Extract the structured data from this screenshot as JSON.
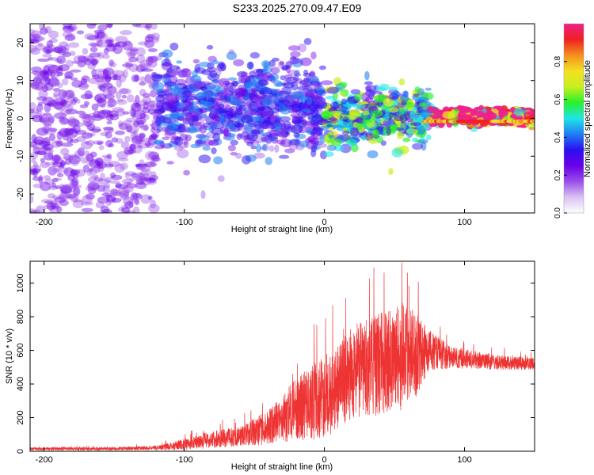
{
  "page_title": "S233.2025.270.09.47.E09",
  "colors": {
    "background": "#ffffff",
    "snr_line": "#ee3333",
    "axis": "#000000",
    "colormap": [
      "#ffffff",
      "#d9c2f2",
      "#9a4dea",
      "#6a00ea",
      "#2a10f0",
      "#1f7ef4",
      "#1fe6e8",
      "#28f028",
      "#c8f020",
      "#f4e020",
      "#f49020",
      "#f02020",
      "#f0208a"
    ]
  },
  "chart_data": [
    {
      "type": "heatmap",
      "title": "",
      "xlabel": "Height of straight line (km)",
      "ylabel": "Frequency (Hz)",
      "xlim": [
        -210,
        150
      ],
      "ylim": [
        -25,
        25
      ],
      "xticks": [
        -200,
        -100,
        0,
        100
      ],
      "yticks": [
        -20,
        -10,
        0,
        10,
        20
      ],
      "colorbar": {
        "label": "Normalized spectral amplitude",
        "range": [
          0.0,
          1.0
        ],
        "ticks": [
          "0.0",
          "0.2",
          "0.4",
          "0.6",
          "0.8"
        ],
        "tick_values": [
          0.0,
          0.2,
          0.4,
          0.6,
          0.8
        ]
      },
      "description_regions": [
        {
          "x_range": [
            -210,
            -120
          ],
          "freq_spread_hz": 25,
          "amplitude": 0.12
        },
        {
          "x_range": [
            -120,
            0
          ],
          "freq_spread_hz": 10,
          "amplitude": 0.22
        },
        {
          "x_range": [
            0,
            75
          ],
          "freq_spread_hz": 6,
          "amplitude": 0.4
        },
        {
          "x_range": [
            75,
            150
          ],
          "freq_spread_hz": 1.5,
          "amplitude": 0.85
        }
      ]
    },
    {
      "type": "line",
      "title": "",
      "xlabel": "Height of straight line (km)",
      "ylabel": "SNR (10 * v/v)",
      "xlim": [
        -210,
        150
      ],
      "ylim": [
        0,
        1130
      ],
      "xticks": [
        -200,
        -100,
        0,
        100
      ],
      "yticks": [
        0,
        200,
        400,
        600,
        800,
        1000
      ],
      "series": [
        {
          "name": "SNR",
          "envelope": {
            "x": [
              -210,
              -150,
              -120,
              -100,
              -80,
              -60,
              -40,
              -20,
              0,
              10,
              20,
              40,
              50,
              60,
              75,
              90,
              110,
              130,
              150
            ],
            "mean": [
              15,
              15,
              20,
              40,
              70,
              90,
              140,
              250,
              320,
              380,
              470,
              520,
              560,
              560,
              600,
              560,
              540,
              525,
              520
            ],
            "spread": [
              10,
              12,
              15,
              40,
              60,
              70,
              120,
              220,
              300,
              300,
              320,
              360,
              380,
              380,
              140,
              80,
              60,
              50,
              40
            ]
          }
        }
      ]
    }
  ]
}
